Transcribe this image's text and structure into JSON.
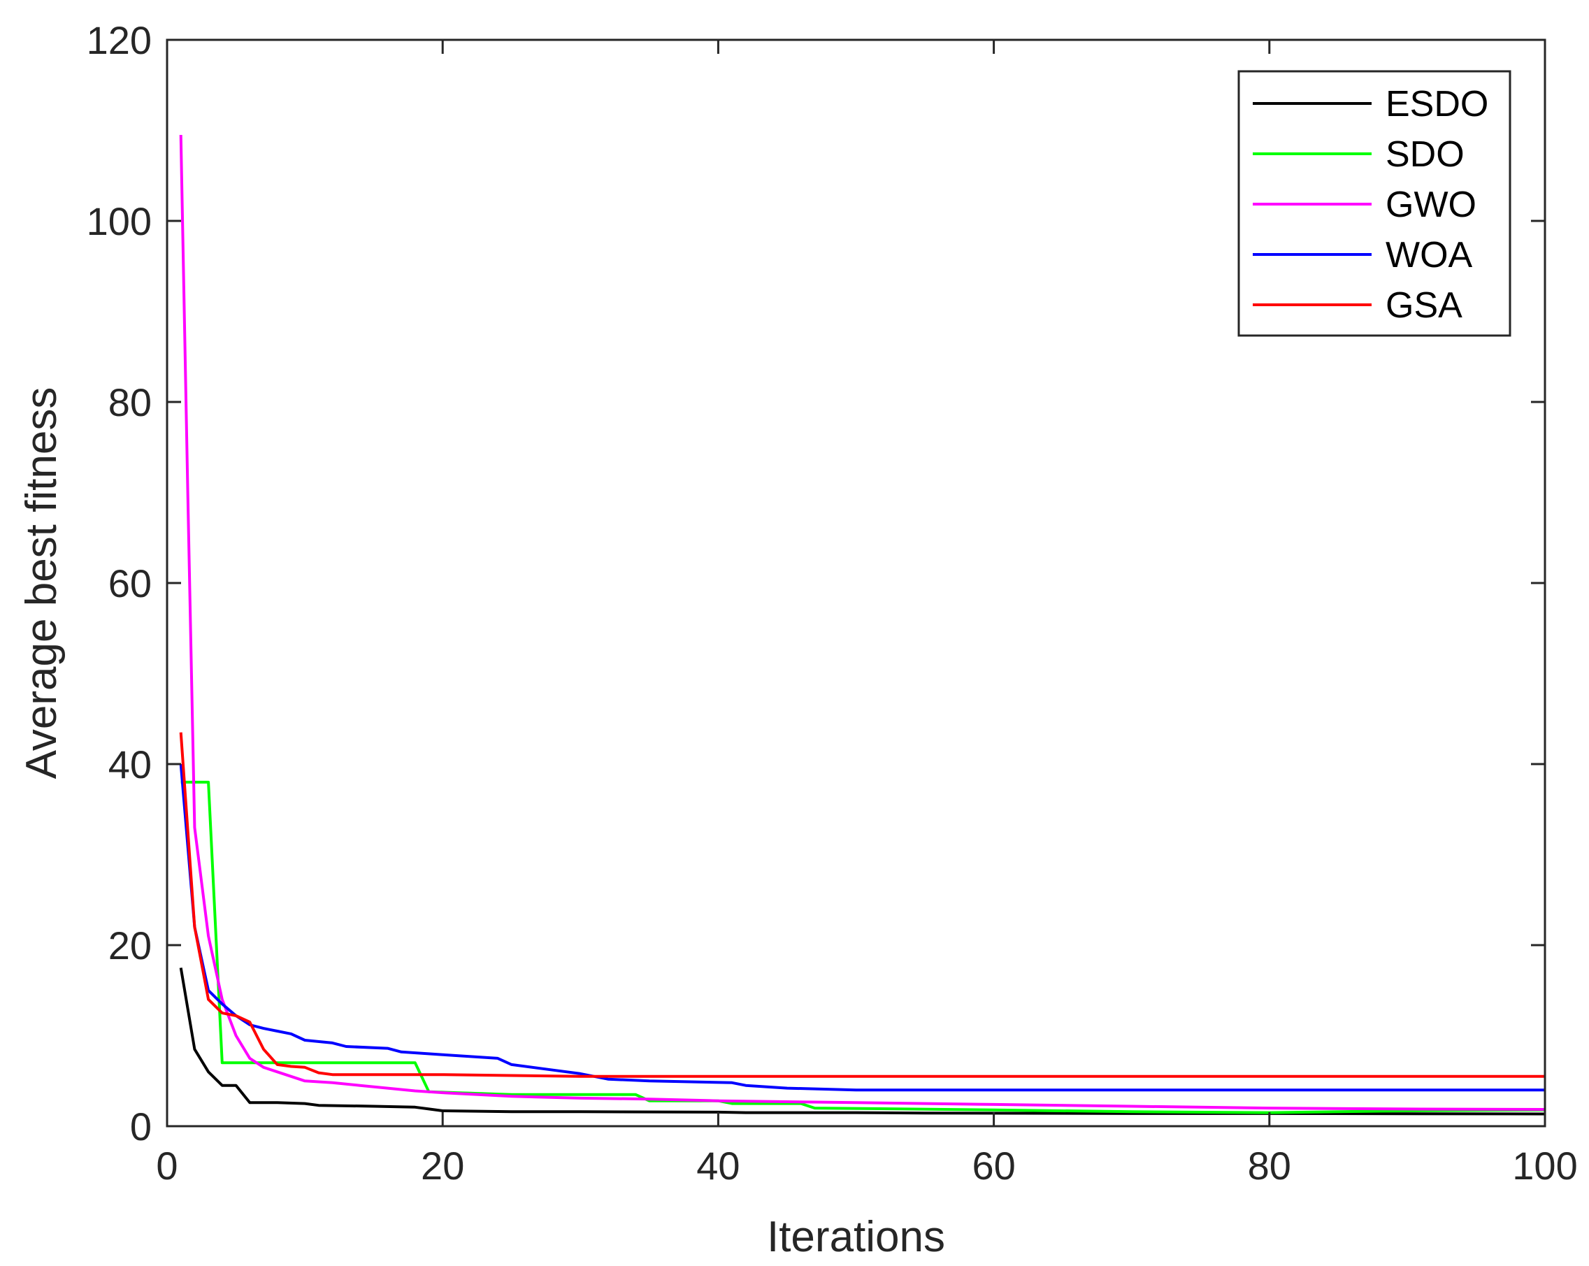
{
  "chart_data": {
    "type": "line",
    "title": "",
    "xlabel": "Iterations",
    "ylabel": "Average best fitness",
    "xlim": [
      0,
      100
    ],
    "ylim": [
      0,
      120
    ],
    "xticks": [
      "0",
      "20",
      "40",
      "60",
      "80",
      "100"
    ],
    "yticks": [
      "0",
      "20",
      "40",
      "60",
      "80",
      "100",
      "120"
    ],
    "grid": false,
    "legend_position": "top-right",
    "series": [
      {
        "name": "ESDO",
        "color": "#000000",
        "points": [
          [
            1,
            17.5
          ],
          [
            2,
            8.5
          ],
          [
            3,
            6.0
          ],
          [
            4,
            4.5
          ],
          [
            5,
            4.5
          ],
          [
            6,
            2.6
          ],
          [
            8,
            2.6
          ],
          [
            10,
            2.5
          ],
          [
            11,
            2.3
          ],
          [
            15,
            2.2
          ],
          [
            18,
            2.1
          ],
          [
            19,
            1.9
          ],
          [
            20,
            1.7
          ],
          [
            25,
            1.6
          ],
          [
            30,
            1.6
          ],
          [
            40,
            1.55
          ],
          [
            42,
            1.5
          ],
          [
            50,
            1.5
          ],
          [
            55,
            1.45
          ],
          [
            70,
            1.4
          ],
          [
            80,
            1.4
          ],
          [
            100,
            1.35
          ]
        ]
      },
      {
        "name": "SDO",
        "color": "#00ff00",
        "points": [
          [
            1,
            38
          ],
          [
            3,
            38
          ],
          [
            4,
            7.0
          ],
          [
            18,
            7.0
          ],
          [
            19,
            3.8
          ],
          [
            25,
            3.5
          ],
          [
            34,
            3.5
          ],
          [
            35,
            2.8
          ],
          [
            40,
            2.8
          ],
          [
            41,
            2.5
          ],
          [
            46,
            2.5
          ],
          [
            47,
            2.0
          ],
          [
            60,
            1.8
          ],
          [
            70,
            1.6
          ],
          [
            80,
            1.5
          ],
          [
            90,
            1.7
          ],
          [
            100,
            1.8
          ]
        ]
      },
      {
        "name": "GWO",
        "color": "#ff00ff",
        "points": [
          [
            1,
            109.5
          ],
          [
            1.5,
            70
          ],
          [
            2,
            33
          ],
          [
            3,
            21
          ],
          [
            4,
            14
          ],
          [
            5,
            10
          ],
          [
            6,
            7.5
          ],
          [
            7,
            6.5
          ],
          [
            8,
            6.0
          ],
          [
            9,
            5.5
          ],
          [
            10,
            5.0
          ],
          [
            12,
            4.8
          ],
          [
            14,
            4.5
          ],
          [
            16,
            4.2
          ],
          [
            18,
            3.9
          ],
          [
            20,
            3.7
          ],
          [
            25,
            3.3
          ],
          [
            30,
            3.1
          ],
          [
            35,
            3.0
          ],
          [
            40,
            2.8
          ],
          [
            50,
            2.6
          ],
          [
            60,
            2.4
          ],
          [
            70,
            2.2
          ],
          [
            80,
            2.0
          ],
          [
            90,
            1.9
          ],
          [
            100,
            1.85
          ]
        ]
      },
      {
        "name": "WOA",
        "color": "#0000ff",
        "points": [
          [
            1,
            40
          ],
          [
            2,
            22
          ],
          [
            3,
            15
          ],
          [
            4,
            13.5
          ],
          [
            5,
            12.2
          ],
          [
            6,
            11.2
          ],
          [
            7,
            10.8
          ],
          [
            8,
            10.5
          ],
          [
            9,
            10.2
          ],
          [
            10,
            9.5
          ],
          [
            12,
            9.2
          ],
          [
            13,
            8.8
          ],
          [
            16,
            8.6
          ],
          [
            17,
            8.2
          ],
          [
            20,
            7.9
          ],
          [
            24,
            7.5
          ],
          [
            25,
            6.8
          ],
          [
            28,
            6.2
          ],
          [
            30,
            5.8
          ],
          [
            31,
            5.5
          ],
          [
            32,
            5.2
          ],
          [
            35,
            5.0
          ],
          [
            41,
            4.8
          ],
          [
            42,
            4.5
          ],
          [
            45,
            4.2
          ],
          [
            50,
            4.0
          ],
          [
            60,
            4.0
          ],
          [
            80,
            4.0
          ],
          [
            100,
            4.0
          ]
        ]
      },
      {
        "name": "GSA",
        "color": "#ff0000",
        "points": [
          [
            1,
            43.5
          ],
          [
            2,
            22
          ],
          [
            3,
            14
          ],
          [
            4,
            12.5
          ],
          [
            5,
            12.2
          ],
          [
            6,
            11.5
          ],
          [
            7,
            8.5
          ],
          [
            8,
            6.8
          ],
          [
            9,
            6.6
          ],
          [
            10,
            6.5
          ],
          [
            11,
            5.9
          ],
          [
            12,
            5.7
          ],
          [
            20,
            5.7
          ],
          [
            25,
            5.6
          ],
          [
            30,
            5.5
          ],
          [
            40,
            5.5
          ],
          [
            60,
            5.5
          ],
          [
            80,
            5.5
          ],
          [
            100,
            5.5
          ]
        ]
      }
    ]
  }
}
